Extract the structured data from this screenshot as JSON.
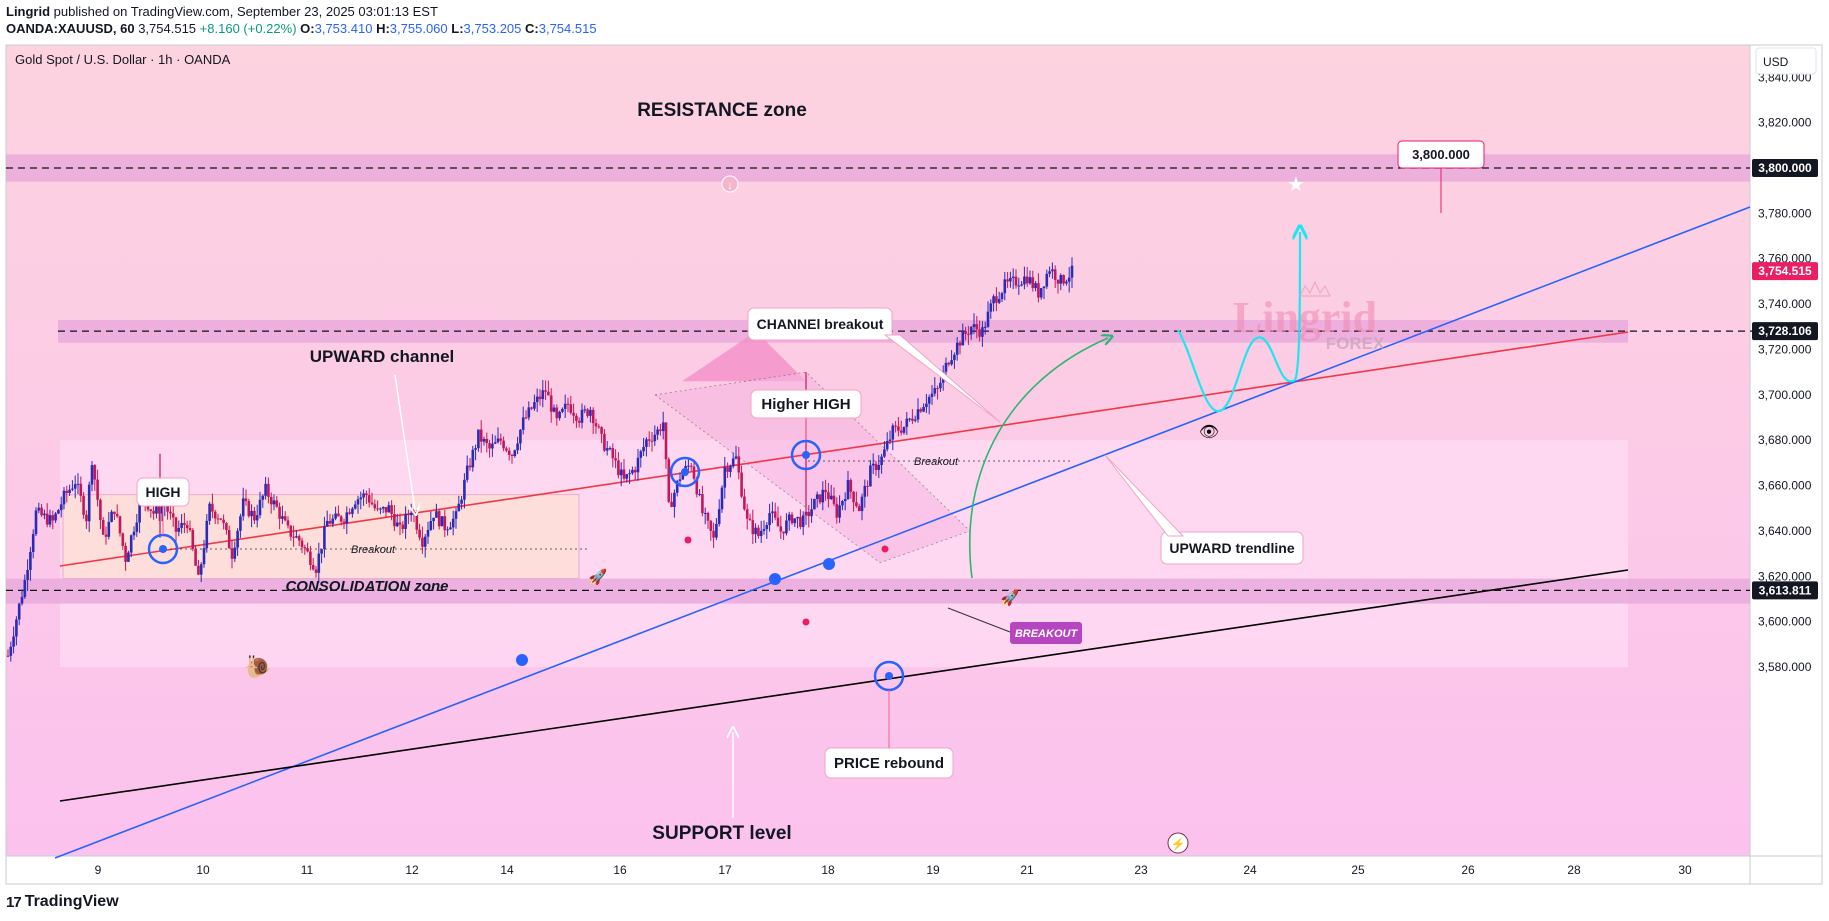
{
  "header": {
    "line1_author": "Lingrid",
    "line1_rest": " published on TradingView.com, September 23, 2025 03:01:13 EST",
    "symbol": "OANDA:XAUUSD, 60",
    "price": "3,754.515",
    "change": "+8.160 (+0.22%)",
    "o_label": "O:",
    "o": "3,753.410",
    "h_label": "H:",
    "h": "3,755.060",
    "l_label": "L:",
    "l": "3,753.205",
    "c_label": "C:",
    "c": "3,754.515"
  },
  "footer": {
    "brand": "TradingView",
    "logo_icon": "tradingview-logo-icon"
  },
  "colors": {
    "bg_top": "#fdd3df",
    "bg_bottom": "#fbc2ee",
    "zone": "#e7a8dc",
    "candle_up": "#2a2bb7",
    "candle_down": "#c2185b",
    "red_line": "#f23645",
    "blue_line": "#2962ff",
    "black_line": "#000000",
    "cyan": "#1ee6f0",
    "green_arrow": "#2bb673"
  },
  "chart_data": {
    "type": "candlestick",
    "title": "Gold Spot / U.S. Dollar · 1h · OANDA",
    "currency": "USD",
    "y_ticks": [
      "3,840.000",
      "3,820.000",
      "3,800.000",
      "3,780.000",
      "3,760.000",
      "3,740.000",
      "3,720.000",
      "3,700.000",
      "3,680.000",
      "3,660.000",
      "3,640.000",
      "3,620.000",
      "3,600.000",
      "3,580.000"
    ],
    "x_ticks": [
      "9",
      "10",
      "11",
      "12",
      "14",
      "16",
      "17",
      "18",
      "19",
      "21",
      "23",
      "24",
      "25",
      "26",
      "28",
      "30"
    ],
    "ylim": [
      3565,
      3864
    ],
    "price_tags": [
      {
        "label": "3,800.000",
        "value": 3800,
        "style": "dark"
      },
      {
        "label": "3,754.515",
        "value": 3754.515,
        "style": "red"
      },
      {
        "label": "3,728.106",
        "value": 3728.106,
        "style": "dark"
      },
      {
        "label": "3,613.811",
        "value": 3613.811,
        "style": "dark"
      }
    ],
    "target_label": "3,800.000",
    "annotations": {
      "resistance": "RESISTANCE zone",
      "support": "SUPPORT level",
      "upward_channel": "UPWARD channel",
      "high": "HIGH",
      "higher_high": "Higher HIGH",
      "channel_breakout": "CHANNEl breakout",
      "upward_trendline": "UPWARD trendline",
      "price_rebound": "PRICE rebound",
      "consolidation": "CONSOLIDATION zone",
      "breakout1": "Breakout",
      "breakout2": "Breakout",
      "breakout_tag": "BREAKOUT",
      "watermark_main": "Lingrid",
      "watermark_sub": "FOREX"
    },
    "candle_path": [
      [
        0,
        3585
      ],
      [
        3,
        3618
      ],
      [
        5,
        3648
      ],
      [
        8,
        3644
      ],
      [
        10,
        3655
      ],
      [
        12,
        3662
      ],
      [
        14,
        3646
      ],
      [
        15,
        3672
      ],
      [
        17,
        3636
      ],
      [
        19,
        3650
      ],
      [
        21,
        3628
      ],
      [
        24,
        3656
      ],
      [
        26,
        3648
      ],
      [
        28,
        3652
      ],
      [
        30,
        3640
      ],
      [
        32,
        3644
      ],
      [
        34,
        3618
      ],
      [
        36,
        3650
      ],
      [
        38,
        3646
      ],
      [
        40,
        3630
      ],
      [
        42,
        3652
      ],
      [
        44,
        3646
      ],
      [
        46,
        3658
      ],
      [
        48,
        3650
      ],
      [
        50,
        3640
      ],
      [
        52,
        3636
      ],
      [
        55,
        3624
      ],
      [
        57,
        3644
      ],
      [
        60,
        3646
      ],
      [
        62,
        3654
      ],
      [
        64,
        3656
      ],
      [
        66,
        3648
      ],
      [
        68,
        3650
      ],
      [
        70,
        3640
      ],
      [
        72,
        3650
      ],
      [
        74,
        3636
      ],
      [
        76,
        3648
      ],
      [
        78,
        3642
      ],
      [
        80,
        3646
      ],
      [
        82,
        3666
      ],
      [
        84,
        3682
      ],
      [
        86,
        3676
      ],
      [
        88,
        3680
      ],
      [
        90,
        3674
      ],
      [
        92,
        3688
      ],
      [
        94,
        3696
      ],
      [
        96,
        3702
      ],
      [
        98,
        3688
      ],
      [
        100,
        3696
      ],
      [
        102,
        3690
      ],
      [
        104,
        3694
      ],
      [
        106,
        3680
      ],
      [
        108,
        3672
      ],
      [
        110,
        3662
      ],
      [
        112,
        3668
      ],
      [
        114,
        3680
      ],
      [
        116,
        3684
      ],
      [
        117,
        3688
      ],
      [
        118,
        3650
      ],
      [
        120,
        3664
      ],
      [
        122,
        3670
      ],
      [
        124,
        3648
      ],
      [
        126,
        3636
      ],
      [
        128,
        3668
      ],
      [
        130,
        3672
      ],
      [
        132,
        3644
      ],
      [
        134,
        3638
      ],
      [
        136,
        3648
      ],
      [
        138,
        3640
      ],
      [
        140,
        3646
      ],
      [
        142,
        3644
      ],
      [
        144,
        3652
      ],
      [
        146,
        3658
      ],
      [
        148,
        3648
      ],
      [
        150,
        3660
      ],
      [
        152,
        3650
      ],
      [
        154,
        3666
      ],
      [
        156,
        3672
      ],
      [
        158,
        3684
      ],
      [
        160,
        3686
      ],
      [
        162,
        3692
      ],
      [
        164,
        3698
      ],
      [
        166,
        3702
      ],
      [
        168,
        3716
      ],
      [
        170,
        3724
      ],
      [
        172,
        3730
      ],
      [
        174,
        3728
      ],
      [
        176,
        3742
      ],
      [
        178,
        3748
      ],
      [
        180,
        3750
      ],
      [
        182,
        3752
      ],
      [
        184,
        3745
      ],
      [
        186,
        3756
      ],
      [
        188,
        3750
      ],
      [
        190,
        3754
      ]
    ],
    "projection_path": [
      [
        190,
        3754
      ],
      [
        192,
        3742
      ],
      [
        195,
        3728
      ],
      [
        197,
        3730
      ],
      [
        200,
        3750
      ],
      [
        203,
        3742
      ],
      [
        206,
        3738
      ],
      [
        208,
        3760
      ],
      [
        210,
        3790
      ],
      [
        211,
        3800
      ]
    ]
  }
}
